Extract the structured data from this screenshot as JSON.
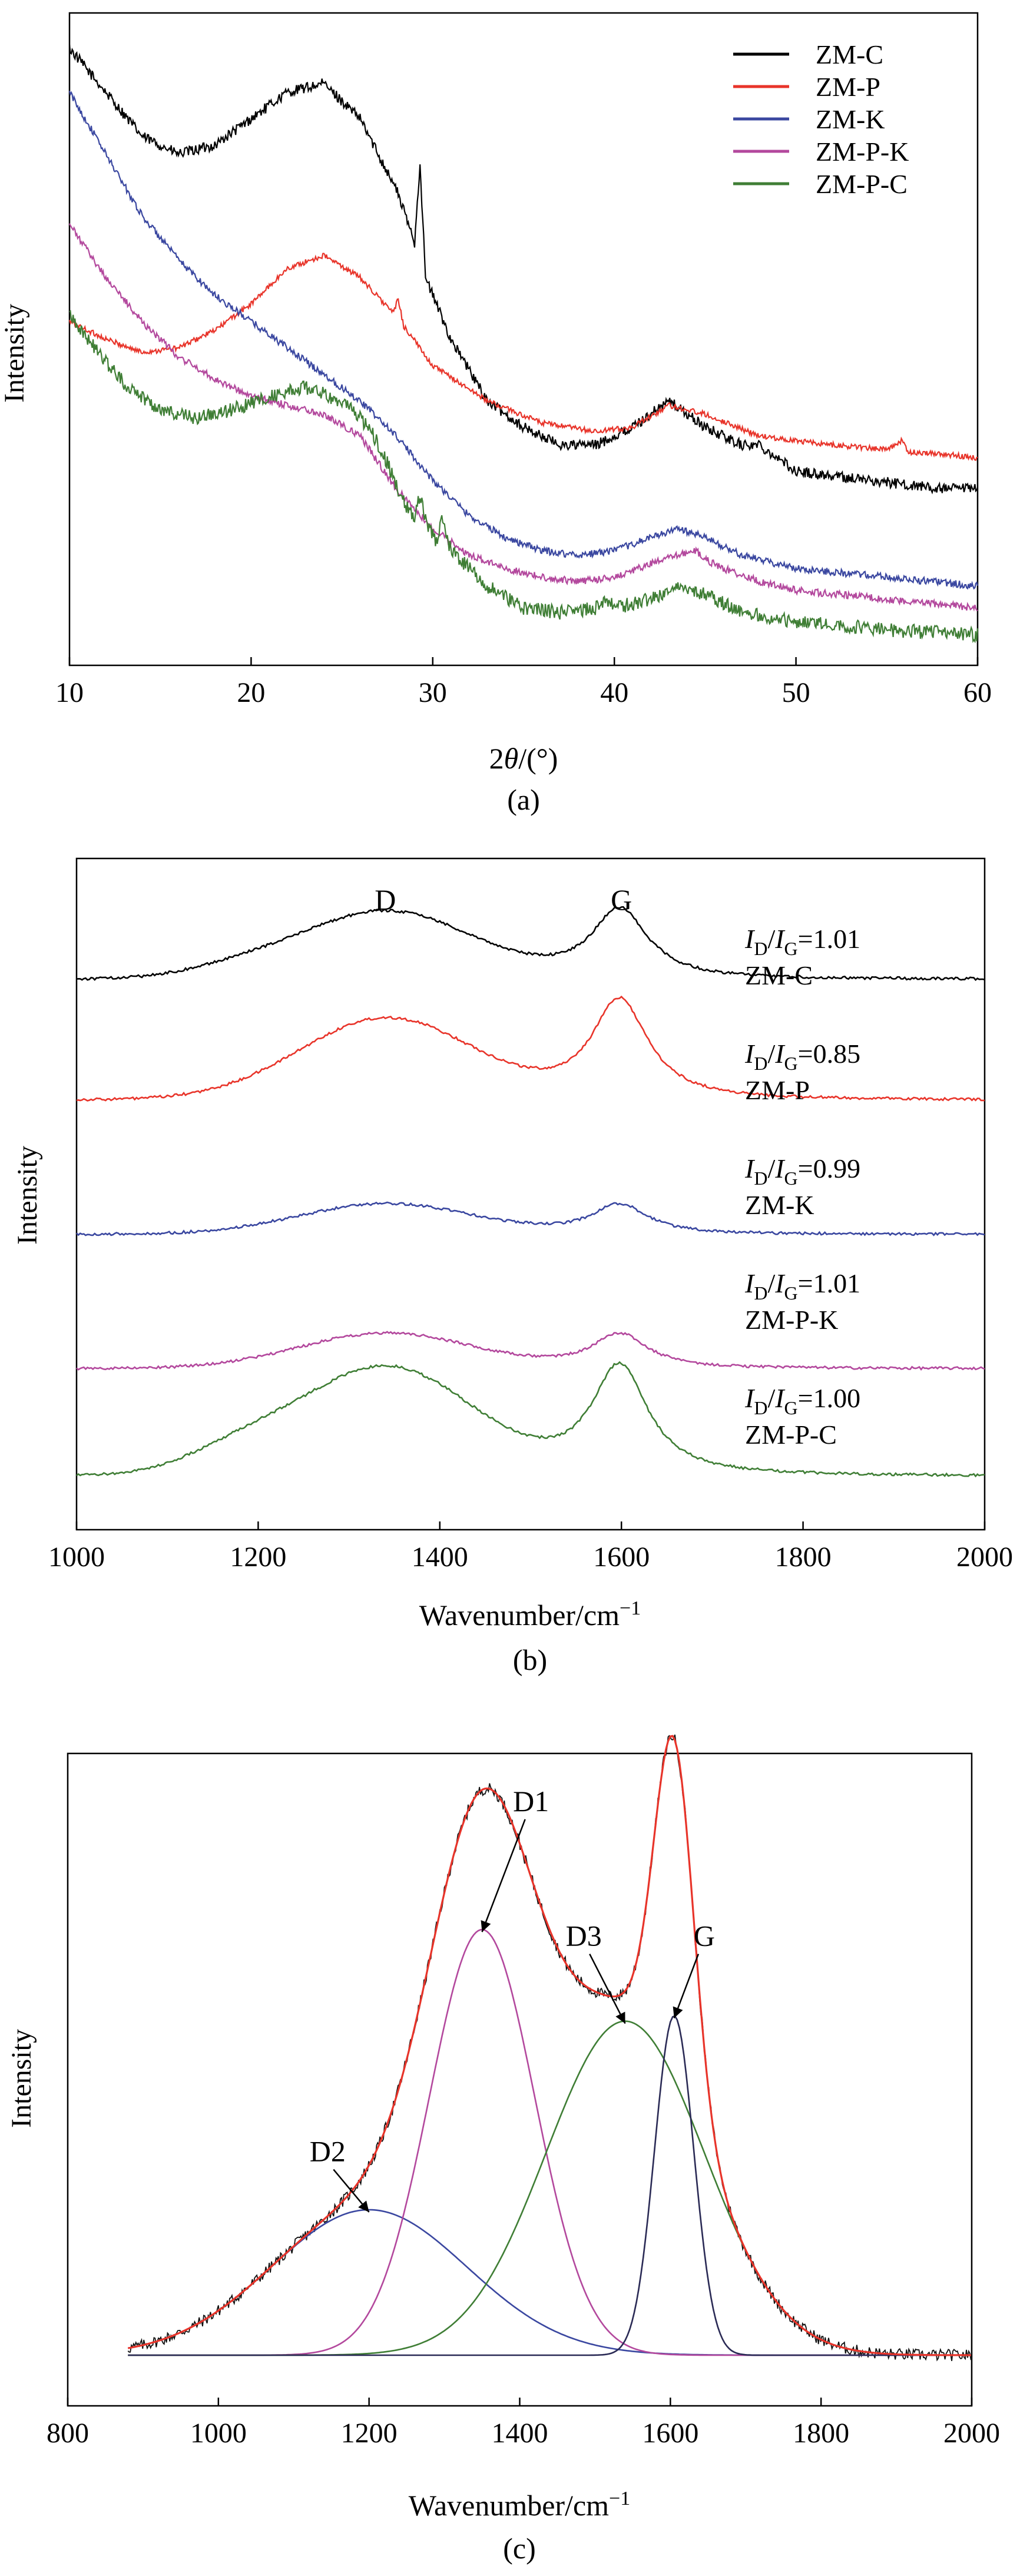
{
  "chart_data": [
    {
      "id": "a",
      "type": "line",
      "panel_label": "(a)",
      "xlabel_prefix": "2",
      "xlabel_theta": "θ",
      "xlabel_suffix": "/(°)",
      "ylabel": "Intensity",
      "xlim": [
        10,
        60
      ],
      "xticks": [
        10,
        20,
        30,
        40,
        50,
        60
      ],
      "legend_position": "top-right",
      "series": [
        {
          "name": "ZM-C",
          "color": "#000000",
          "noise": 0.006,
          "points": [
            [
              10,
              1.0
            ],
            [
              12,
              0.95
            ],
            [
              14,
              0.9
            ],
            [
              16,
              0.88
            ],
            [
              18,
              0.89
            ],
            [
              20,
              0.92
            ],
            [
              22,
              0.95
            ],
            [
              24,
              0.96
            ],
            [
              26,
              0.92
            ],
            [
              28,
              0.84
            ],
            [
              29,
              0.78
            ],
            [
              29.3,
              0.87
            ],
            [
              29.6,
              0.74
            ],
            [
              31,
              0.67
            ],
            [
              33,
              0.6
            ],
            [
              35,
              0.57
            ],
            [
              37,
              0.55
            ],
            [
              39,
              0.55
            ],
            [
              41,
              0.57
            ],
            [
              43,
              0.6
            ],
            [
              45,
              0.57
            ],
            [
              47,
              0.55
            ],
            [
              48,
              0.55
            ],
            [
              50,
              0.52
            ],
            [
              54,
              0.51
            ],
            [
              58,
              0.5
            ],
            [
              60,
              0.5
            ]
          ]
        },
        {
          "name": "ZM-P",
          "color": "#e8342a",
          "noise": 0.003,
          "points": [
            [
              10,
              0.69
            ],
            [
              12,
              0.67
            ],
            [
              14,
              0.655
            ],
            [
              16,
              0.66
            ],
            [
              18,
              0.68
            ],
            [
              20,
              0.71
            ],
            [
              22,
              0.75
            ],
            [
              24,
              0.765
            ],
            [
              26,
              0.74
            ],
            [
              27.8,
              0.7
            ],
            [
              28.1,
              0.715
            ],
            [
              28.4,
              0.685
            ],
            [
              30,
              0.64
            ],
            [
              33,
              0.6
            ],
            [
              36,
              0.575
            ],
            [
              39,
              0.565
            ],
            [
              41,
              0.57
            ],
            [
              43,
              0.595
            ],
            [
              45,
              0.585
            ],
            [
              48,
              0.56
            ],
            [
              52,
              0.55
            ],
            [
              55,
              0.545
            ],
            [
              55.8,
              0.555
            ],
            [
              56.2,
              0.542
            ],
            [
              58,
              0.54
            ],
            [
              60,
              0.535
            ]
          ]
        },
        {
          "name": "ZM-K",
          "color": "#3a47a0",
          "noise": 0.004,
          "points": [
            [
              10,
              0.95
            ],
            [
              12,
              0.88
            ],
            [
              14,
              0.81
            ],
            [
              16,
              0.76
            ],
            [
              18,
              0.72
            ],
            [
              20,
              0.69
            ],
            [
              22,
              0.66
            ],
            [
              24,
              0.63
            ],
            [
              26,
              0.6
            ],
            [
              28,
              0.56
            ],
            [
              30,
              0.51
            ],
            [
              32,
              0.47
            ],
            [
              34,
              0.445
            ],
            [
              36,
              0.43
            ],
            [
              38,
              0.425
            ],
            [
              40,
              0.43
            ],
            [
              42,
              0.445
            ],
            [
              43.5,
              0.455
            ],
            [
              45,
              0.445
            ],
            [
              47,
              0.425
            ],
            [
              50,
              0.41
            ],
            [
              55,
              0.4
            ],
            [
              60,
              0.39
            ]
          ]
        },
        {
          "name": "ZM-P-K",
          "color": "#b3489d",
          "noise": 0.004,
          "points": [
            [
              10,
              0.8
            ],
            [
              12,
              0.74
            ],
            [
              14,
              0.69
            ],
            [
              16,
              0.65
            ],
            [
              18,
              0.625
            ],
            [
              20,
              0.605
            ],
            [
              22,
              0.595
            ],
            [
              24,
              0.585
            ],
            [
              26,
              0.56
            ],
            [
              28,
              0.5
            ],
            [
              30,
              0.455
            ],
            [
              32,
              0.425
            ],
            [
              34,
              0.41
            ],
            [
              36,
              0.4
            ],
            [
              38,
              0.395
            ],
            [
              40,
              0.4
            ],
            [
              42,
              0.415
            ],
            [
              43.5,
              0.425
            ],
            [
              44.5,
              0.43
            ],
            [
              45.2,
              0.418
            ],
            [
              46,
              0.41
            ],
            [
              48,
              0.395
            ],
            [
              50,
              0.385
            ],
            [
              55,
              0.375
            ],
            [
              60,
              0.365
            ]
          ]
        },
        {
          "name": "ZM-P-C",
          "color": "#3f7e35",
          "noise": 0.008,
          "points": [
            [
              10,
              0.7
            ],
            [
              11,
              0.67
            ],
            [
              13,
              0.62
            ],
            [
              15,
              0.59
            ],
            [
              17,
              0.58
            ],
            [
              19,
              0.59
            ],
            [
              21,
              0.605
            ],
            [
              23,
              0.615
            ],
            [
              25,
              0.6
            ],
            [
              26.5,
              0.57
            ],
            [
              27.5,
              0.53
            ],
            [
              28.5,
              0.48
            ],
            [
              29,
              0.47
            ],
            [
              29.3,
              0.495
            ],
            [
              29.7,
              0.46
            ],
            [
              30.2,
              0.44
            ],
            [
              30.5,
              0.465
            ],
            [
              31,
              0.43
            ],
            [
              33,
              0.39
            ],
            [
              35,
              0.365
            ],
            [
              37,
              0.36
            ],
            [
              39,
              0.365
            ],
            [
              39.6,
              0.375
            ],
            [
              40,
              0.365
            ],
            [
              42,
              0.375
            ],
            [
              43.5,
              0.39
            ],
            [
              45,
              0.38
            ],
            [
              47,
              0.36
            ],
            [
              50,
              0.35
            ],
            [
              55,
              0.34
            ],
            [
              60,
              0.335
            ]
          ]
        }
      ]
    },
    {
      "id": "b",
      "type": "line",
      "panel_label": "(b)",
      "xlabel_prefix": "Wavenumber/cm",
      "xlabel_sup": "−1",
      "ylabel": "Intensity",
      "xlim": [
        1000,
        2000
      ],
      "xticks": [
        1000,
        1200,
        1400,
        1600,
        1800,
        2000
      ],
      "peak_labels": [
        {
          "text": "D",
          "x": 1340
        },
        {
          "text": "G",
          "x": 1600
        }
      ],
      "series": [
        {
          "name": "ZM-C",
          "color": "#000000",
          "ratio": "=1.01",
          "base": 0.82,
          "dAmp": 0.1,
          "gAmp": 0.105,
          "tail": 0.012
        },
        {
          "name": "ZM-P",
          "color": "#e8342a",
          "ratio": "=0.85",
          "base": 0.64,
          "dAmp": 0.12,
          "gAmp": 0.15,
          "tail": 0.0
        },
        {
          "name": "ZM-K",
          "color": "#3a47a0",
          "ratio": "=0.99",
          "base": 0.44,
          "dAmp": 0.045,
          "gAmp": 0.045,
          "tail": 0.0
        },
        {
          "name": "ZM-P-K",
          "color": "#b3489d",
          "ratio": "=1.01",
          "base": 0.24,
          "dAmp": 0.052,
          "gAmp": 0.052,
          "tail": 0.0
        },
        {
          "name": "ZM-P-C",
          "color": "#3f7e35",
          "ratio": "=1.00",
          "base": 0.08,
          "dAmp": 0.16,
          "gAmp": 0.165,
          "tail": 0.03
        }
      ],
      "ratio_prefix": "I",
      "ratio_sub_d": "D",
      "ratio_sub_g": "G"
    },
    {
      "id": "c",
      "type": "line",
      "panel_label": "(c)",
      "xlabel_prefix": "Wavenumber/cm",
      "xlabel_sup": "−1",
      "ylabel": "Intensity",
      "xlim": [
        800,
        2000
      ],
      "xticks": [
        800,
        1000,
        1200,
        1400,
        1600,
        1800,
        2000
      ],
      "components": [
        {
          "name": "D2",
          "center": 1200,
          "amplitude": 0.27,
          "width": 130,
          "color": "#3a47a0",
          "label_x": 1145,
          "label_y": 0.36
        },
        {
          "name": "D1",
          "center": 1350,
          "amplitude": 0.79,
          "width": 70,
          "color": "#b3489d",
          "label_x": 1415,
          "label_y": 1.01
        },
        {
          "name": "D3",
          "center": 1540,
          "amplitude": 0.62,
          "width": 105,
          "color": "#3f7e35",
          "label_x": 1485,
          "label_y": 0.76
        },
        {
          "name": "G",
          "center": 1605,
          "amplitude": 0.63,
          "width": 26,
          "color": "#2a2a55",
          "label_x": 1645,
          "label_y": 0.76
        }
      ],
      "raw_color": "#111111",
      "fit_color": "#e8342a"
    }
  ]
}
